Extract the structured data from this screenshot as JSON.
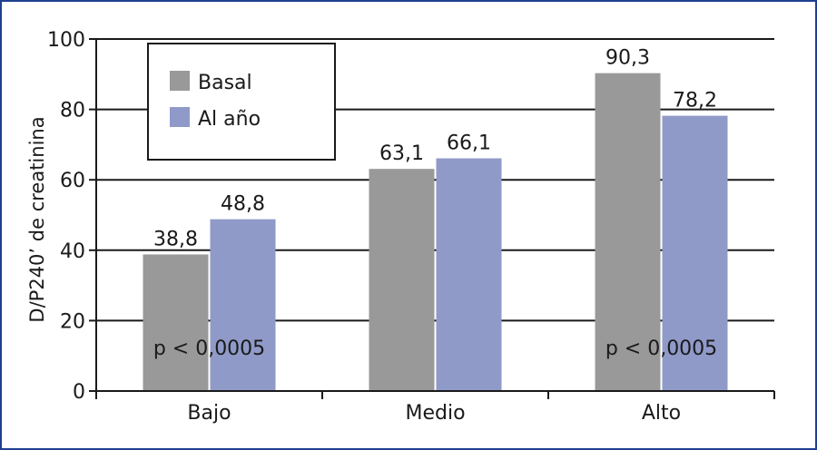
{
  "chart_data": {
    "type": "bar",
    "ylabel": "D/P240’ de creatinina",
    "xlabel": "",
    "ylim": [
      0,
      100
    ],
    "yticks": [
      0,
      20,
      40,
      60,
      80,
      100
    ],
    "grid": true,
    "legend_position": "top-left",
    "categories": [
      "Bajo",
      "Medio",
      "Alto"
    ],
    "series": [
      {
        "name": "Basal",
        "values": [
          38.8,
          63.1,
          90.3
        ],
        "labels": [
          "38,8",
          "63,1",
          "90,3"
        ],
        "color": "#999999"
      },
      {
        "name": "Al año",
        "values": [
          48.8,
          66.1,
          78.2
        ],
        "labels": [
          "48,8",
          "66,1",
          "78,2"
        ],
        "color": "#8f9ac8"
      }
    ],
    "annotations": [
      {
        "text": "p < 0,0005",
        "category": "Bajo"
      },
      {
        "text": "p < 0,0005",
        "category": "Alto"
      }
    ]
  }
}
